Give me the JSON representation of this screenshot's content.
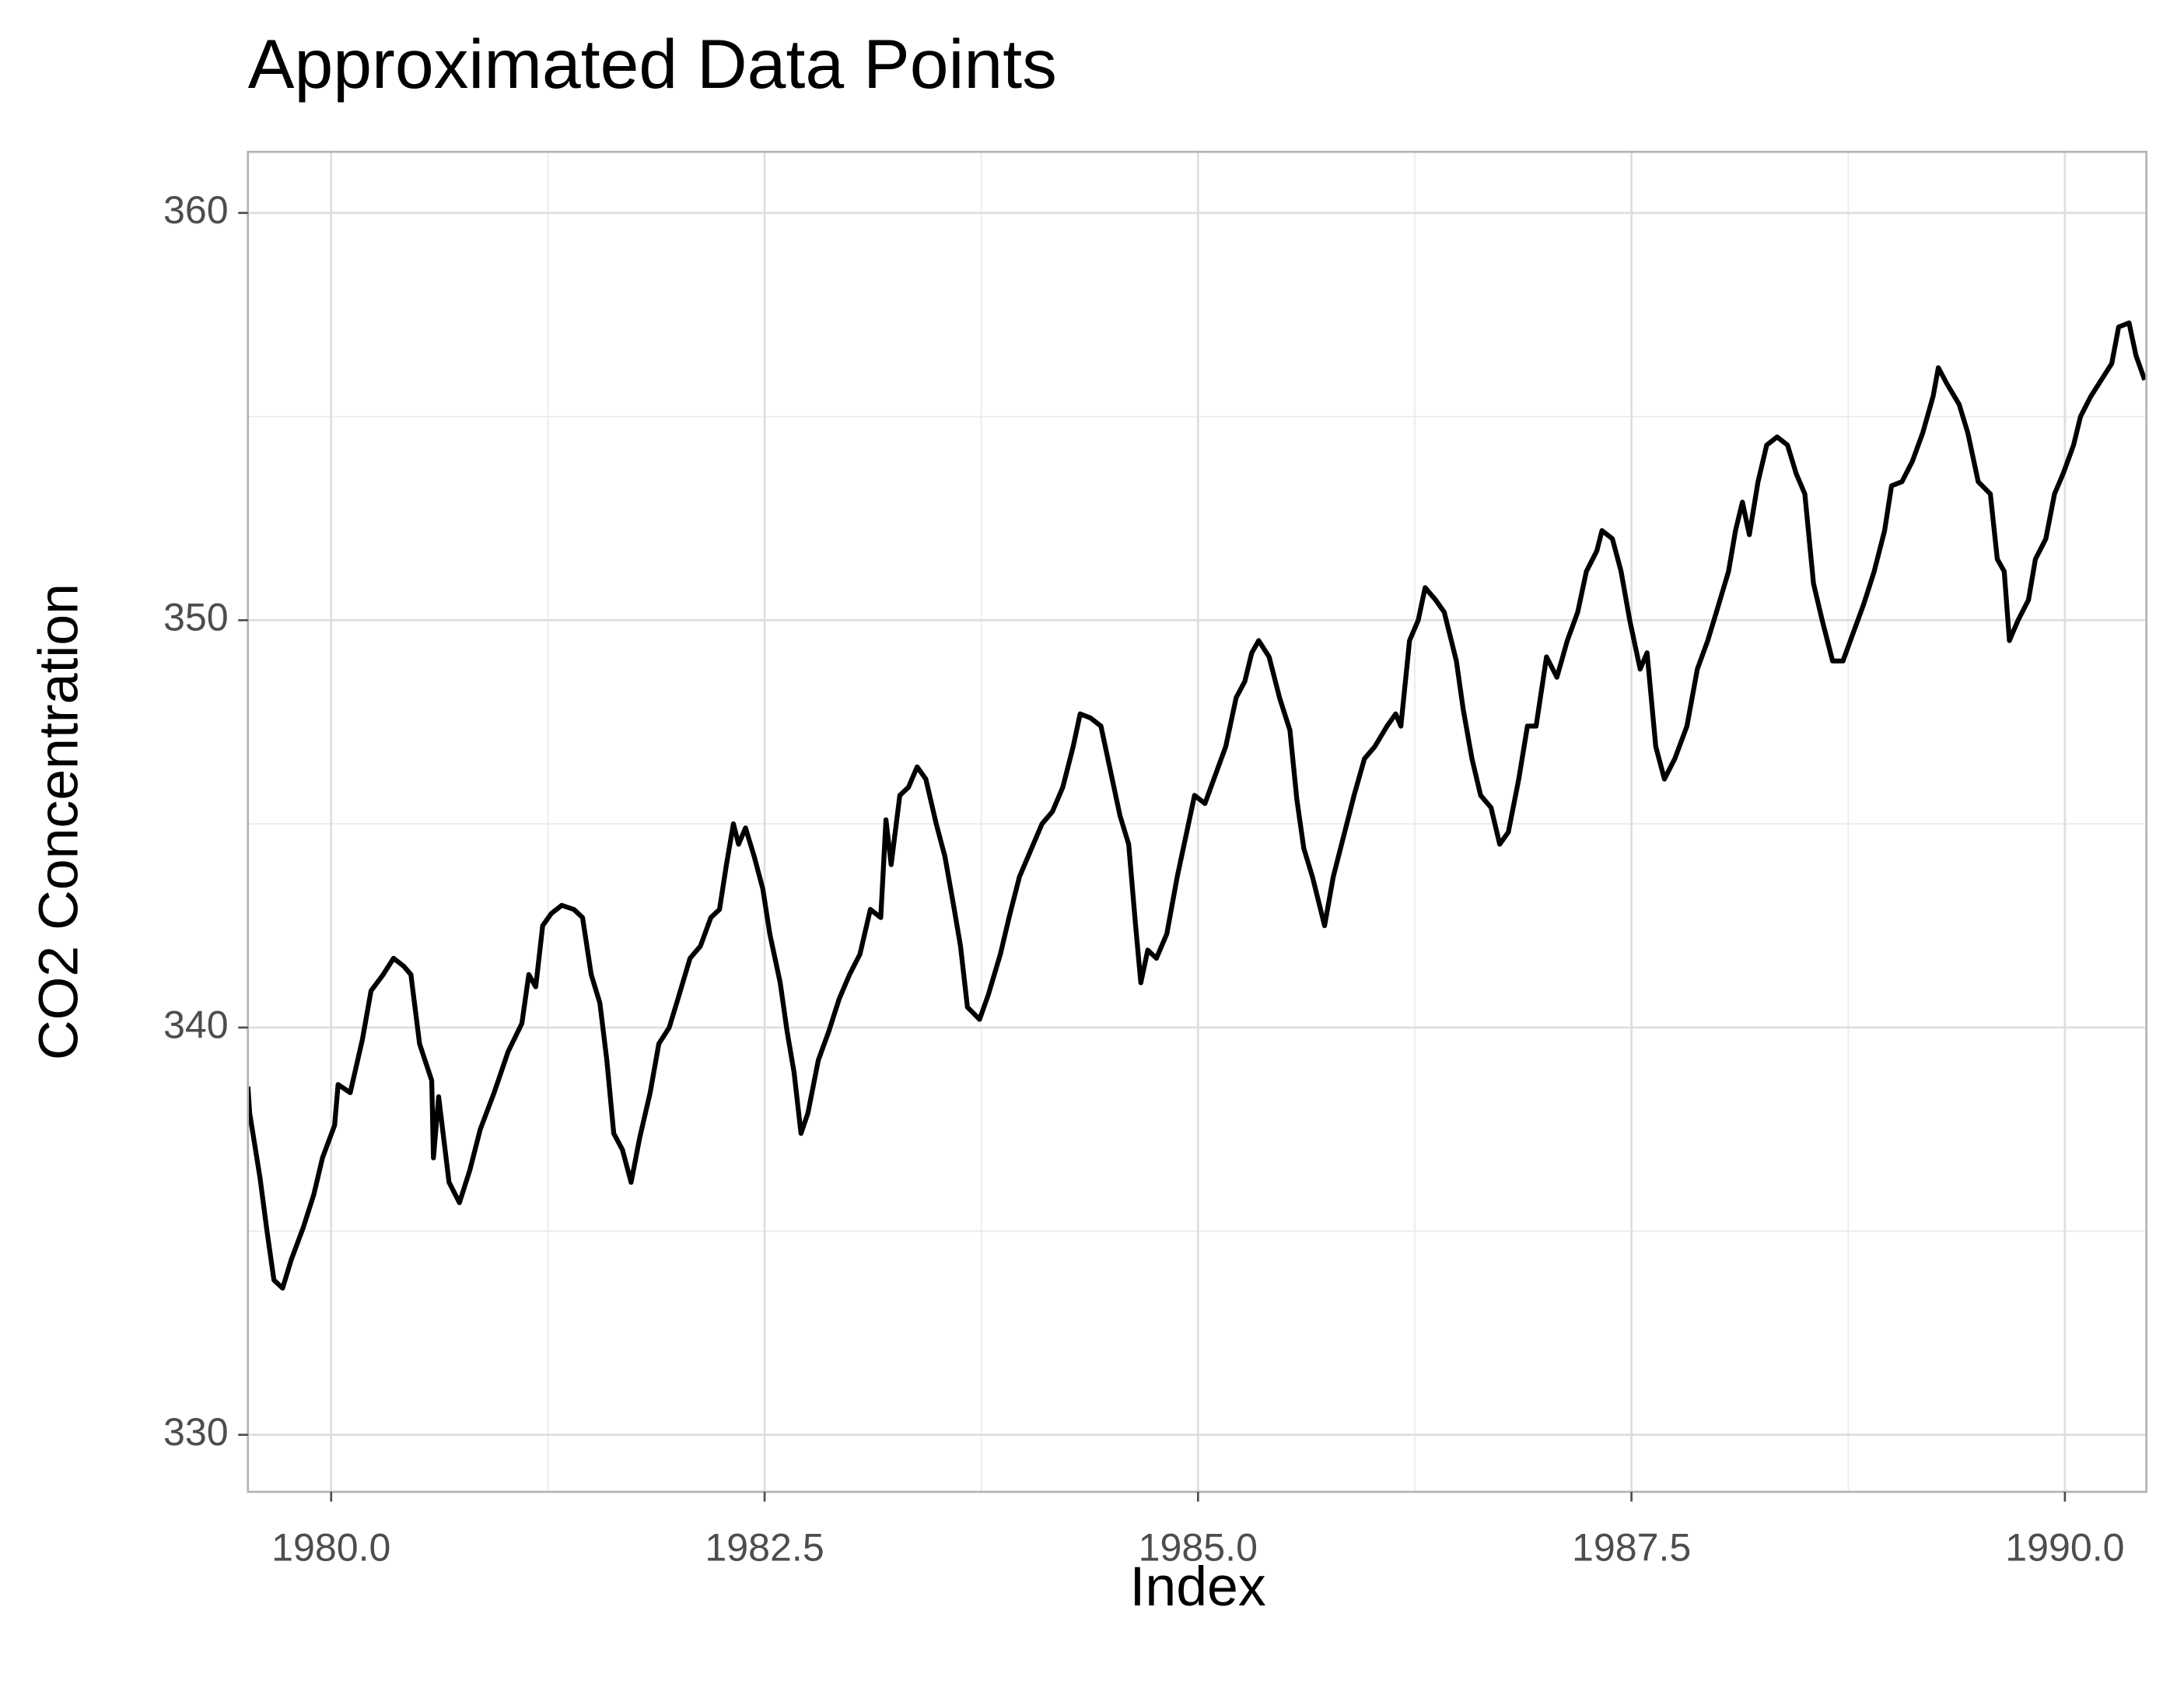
{
  "chart_data": {
    "type": "line",
    "title": "Approximated Data Points",
    "xlabel": "Index",
    "ylabel": "CO2 Concentration",
    "xlim": [
      1979.52,
      1990.47
    ],
    "ylim": [
      328.6,
      361.5
    ],
    "xticks": [
      {
        "value": 1980,
        "label": "1980.0"
      },
      {
        "value": 1982.5,
        "label": "1982.5"
      },
      {
        "value": 1985,
        "label": "1985.0"
      },
      {
        "value": 1987.5,
        "label": "1987.5"
      },
      {
        "value": 1990,
        "label": "1990.0"
      }
    ],
    "yticks": [
      330,
      340,
      350,
      360
    ],
    "xminorticks": [
      1981.25,
      1983.75,
      1986.25,
      1988.75
    ],
    "yminorticks": [
      335,
      345,
      355
    ],
    "grid": true,
    "series": [
      {
        "color": "#000000",
        "x": [
          1979.52,
          1979.53,
          1979.59,
          1979.63,
          1979.67,
          1979.72,
          1979.77,
          1979.84,
          1979.9,
          1979.95,
          1980.02,
          1980.04,
          1980.11,
          1980.18,
          1980.23,
          1980.3,
          1980.36,
          1980.42,
          1980.46,
          1980.51,
          1980.58,
          1980.59,
          1980.62,
          1980.68,
          1980.74,
          1980.8,
          1980.86,
          1980.94,
          1981.02,
          1981.1,
          1981.14,
          1981.18,
          1981.22,
          1981.27,
          1981.33,
          1981.4,
          1981.45,
          1981.5,
          1981.55,
          1981.59,
          1981.63,
          1981.68,
          1981.73,
          1981.78,
          1981.84,
          1981.89,
          1981.95,
          1982.0,
          1982.07,
          1982.13,
          1982.19,
          1982.24,
          1982.28,
          1982.32,
          1982.35,
          1982.39,
          1982.44,
          1982.49,
          1982.53,
          1982.59,
          1982.63,
          1982.67,
          1982.71,
          1982.75,
          1982.81,
          1982.87,
          1982.93,
          1982.99,
          1983.05,
          1983.11,
          1983.17,
          1983.2,
          1983.23,
          1983.28,
          1983.33,
          1983.38,
          1983.43,
          1983.49,
          1983.54,
          1983.59,
          1983.63,
          1983.67,
          1983.74,
          1983.79,
          1983.86,
          1983.91,
          1983.97,
          1984.04,
          1984.1,
          1984.16,
          1984.22,
          1984.28,
          1984.32,
          1984.38,
          1984.44,
          1984.49,
          1984.55,
          1984.6,
          1984.64,
          1984.67,
          1984.71,
          1984.76,
          1984.82,
          1984.88,
          1984.94,
          1984.98,
          1985.04,
          1985.1,
          1985.16,
          1985.22,
          1985.27,
          1985.31,
          1985.35,
          1985.41,
          1985.47,
          1985.53,
          1985.57,
          1985.61,
          1985.66,
          1985.73,
          1985.78,
          1985.84,
          1985.9,
          1985.96,
          1986.02,
          1986.09,
          1986.14,
          1986.17,
          1986.22,
          1986.27,
          1986.31,
          1986.37,
          1986.42,
          1986.49,
          1986.53,
          1986.58,
          1986.63,
          1986.69,
          1986.74,
          1986.79,
          1986.85,
          1986.9,
          1986.95,
          1987.01,
          1987.07,
          1987.13,
          1987.19,
          1987.24,
          1987.3,
          1987.33,
          1987.39,
          1987.44,
          1987.49,
          1987.55,
          1987.59,
          1987.64,
          1987.69,
          1987.75,
          1987.82,
          1987.88,
          1987.94,
          1987.99,
          1988.06,
          1988.1,
          1988.14,
          1988.18,
          1988.23,
          1988.28,
          1988.34,
          1988.4,
          1988.45,
          1988.5,
          1988.55,
          1988.6,
          1988.66,
          1988.72,
          1988.78,
          1988.84,
          1988.9,
          1988.96,
          1989.0,
          1989.06,
          1989.12,
          1989.18,
          1989.24,
          1989.27,
          1989.32,
          1989.39,
          1989.44,
          1989.5,
          1989.57,
          1989.61,
          1989.65,
          1989.68,
          1989.73,
          1989.79,
          1989.83,
          1989.89,
          1989.94,
          1989.99,
          1990.05,
          1990.09,
          1990.15,
          1990.21,
          1990.27,
          1990.31,
          1990.37,
          1990.41,
          1990.46
        ],
        "values": [
          338.55,
          337.9,
          336.3,
          335.0,
          333.8,
          333.6,
          334.3,
          335.1,
          335.9,
          336.8,
          337.6,
          338.6,
          338.4,
          339.7,
          340.9,
          341.3,
          341.7,
          341.5,
          341.3,
          339.6,
          338.7,
          336.8,
          338.3,
          336.2,
          335.7,
          336.5,
          337.5,
          338.4,
          339.4,
          340.1,
          341.3,
          341.0,
          342.5,
          342.8,
          343.0,
          342.9,
          342.7,
          341.3,
          340.6,
          339.2,
          337.4,
          337.0,
          336.2,
          337.3,
          338.4,
          339.6,
          340.0,
          340.7,
          341.7,
          342.0,
          342.7,
          342.9,
          344.0,
          345.0,
          344.5,
          344.9,
          344.2,
          343.4,
          342.3,
          341.1,
          339.9,
          338.9,
          337.4,
          337.9,
          339.2,
          339.9,
          340.7,
          341.3,
          341.8,
          342.9,
          342.7,
          345.1,
          344.0,
          345.7,
          345.9,
          346.4,
          346.1,
          345.0,
          344.2,
          343.0,
          342.0,
          340.5,
          340.2,
          340.8,
          341.8,
          342.7,
          343.7,
          344.4,
          345.0,
          345.3,
          345.9,
          346.9,
          347.7,
          347.6,
          347.4,
          346.4,
          345.2,
          344.5,
          342.5,
          341.1,
          341.9,
          341.7,
          342.3,
          343.7,
          344.9,
          345.7,
          345.5,
          346.2,
          346.9,
          348.1,
          348.5,
          349.2,
          349.5,
          349.1,
          348.1,
          347.3,
          345.6,
          344.4,
          343.7,
          342.5,
          343.7,
          344.7,
          345.7,
          346.6,
          346.9,
          347.4,
          347.7,
          347.4,
          349.5,
          350.0,
          350.8,
          350.5,
          350.2,
          349.0,
          347.8,
          346.6,
          345.7,
          345.4,
          344.5,
          344.8,
          346.1,
          347.4,
          347.4,
          349.1,
          348.6,
          349.5,
          350.2,
          351.2,
          351.7,
          352.2,
          352.0,
          351.2,
          350.0,
          348.8,
          349.2,
          346.9,
          346.1,
          346.6,
          347.4,
          348.8,
          349.5,
          350.2,
          351.2,
          352.2,
          352.9,
          352.1,
          353.4,
          354.3,
          354.5,
          354.3,
          353.6,
          353.1,
          350.9,
          350.0,
          349.0,
          349.0,
          349.7,
          350.4,
          351.2,
          352.2,
          353.3,
          353.4,
          353.9,
          354.6,
          355.5,
          356.2,
          355.8,
          355.3,
          354.6,
          353.4,
          353.1,
          351.5,
          351.2,
          349.5,
          350.0,
          350.5,
          351.5,
          352.0,
          353.1,
          353.6,
          354.3,
          355.0,
          355.5,
          355.9,
          356.3,
          357.2,
          357.3,
          356.5,
          355.9
        ]
      }
    ]
  }
}
